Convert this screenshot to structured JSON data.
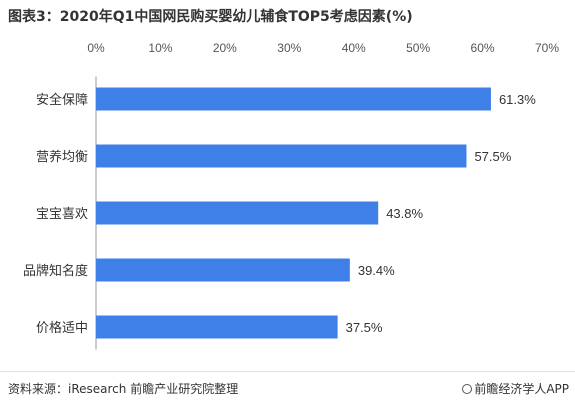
{
  "chart_data": {
    "type": "bar",
    "orientation": "horizontal",
    "title": "图表3：2020年Q1中国网民购买婴幼儿辅食TOP5考虑因素(%)",
    "categories": [
      "安全保障",
      "营养均衡",
      "宝宝喜欢",
      "品牌知名度",
      "价格适中"
    ],
    "values": [
      61.3,
      57.5,
      43.8,
      39.4,
      37.5
    ],
    "value_labels": [
      "61.3%",
      "57.5%",
      "43.8%",
      "39.4%",
      "37.5%"
    ],
    "xlim": [
      0,
      70
    ],
    "x_ticks": [
      "0%",
      "10%",
      "20%",
      "30%",
      "40%",
      "50%",
      "60%",
      "70%"
    ],
    "x_axis_position": "top",
    "grid": false,
    "bar_color": "#3e80e8"
  },
  "footer": {
    "source": "资料来源：iResearch 前瞻产业研究院整理",
    "brand": "前瞻经济学人APP"
  }
}
